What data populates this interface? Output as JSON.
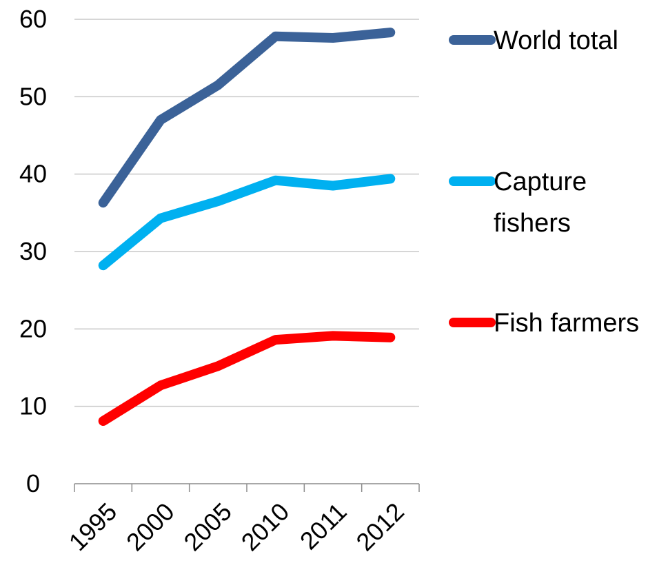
{
  "chart_data": {
    "type": "line",
    "title": "",
    "xlabel": "",
    "ylabel": "",
    "categories": [
      "1995",
      "2000",
      "2005",
      "2010",
      "2011",
      "2012"
    ],
    "ylim": [
      0,
      60
    ],
    "yticks": [
      0,
      10,
      20,
      30,
      40,
      50,
      60
    ],
    "grid": true,
    "legend_position": "right",
    "series": [
      {
        "name": "World total",
        "color": "#3b6298",
        "values": [
          36.3,
          47,
          51.5,
          57.8,
          57.6,
          58.3
        ]
      },
      {
        "name": "Capture fishers",
        "legend_lines": [
          "Capture",
          "fishers"
        ],
        "color": "#00b0f0",
        "values": [
          28.2,
          34.3,
          36.5,
          39.2,
          38.5,
          39.4
        ]
      },
      {
        "name": "Fish farmers",
        "color": "#ff0000",
        "values": [
          8.1,
          12.7,
          15.2,
          18.6,
          19.1,
          18.9
        ]
      }
    ]
  }
}
